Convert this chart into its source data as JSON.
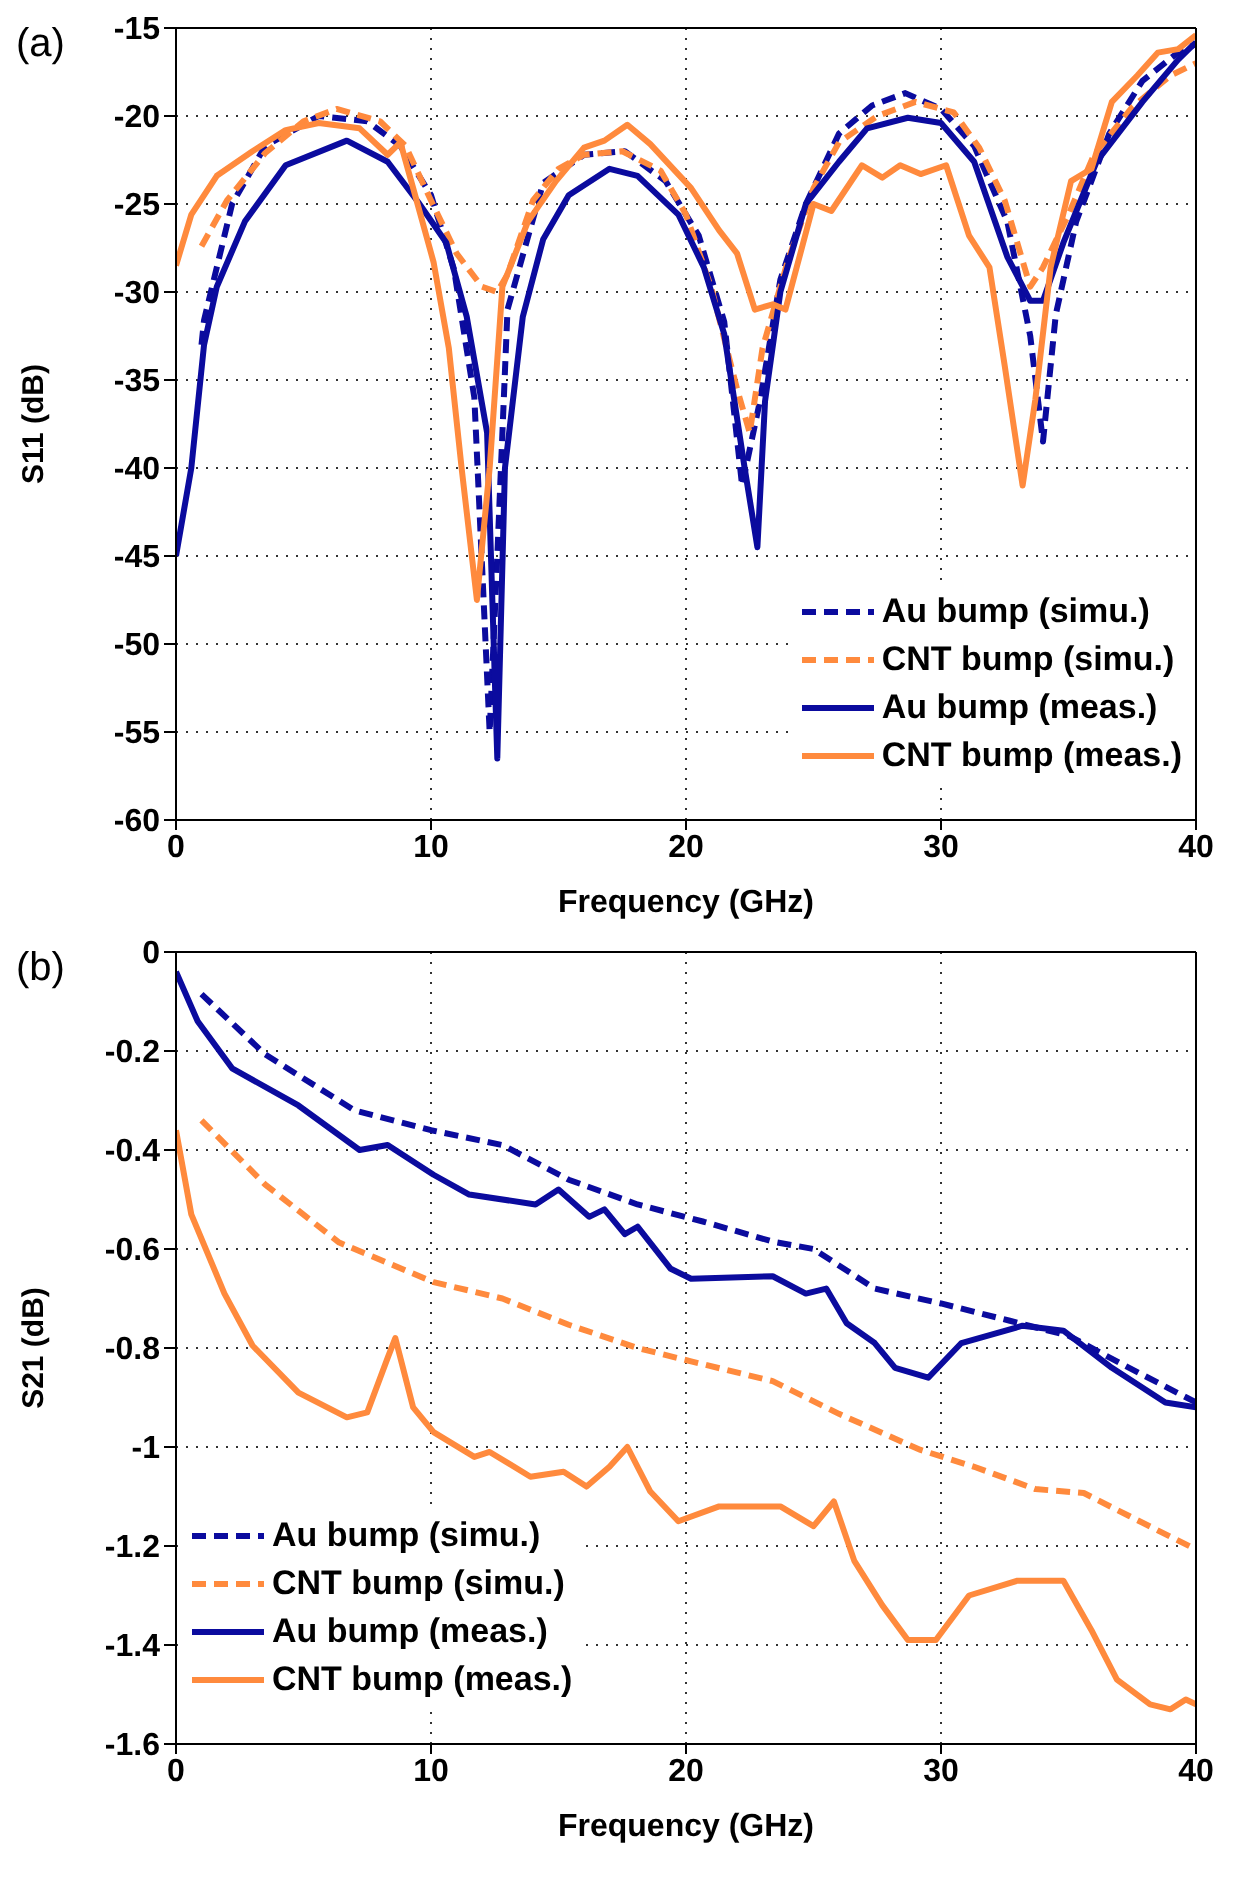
{
  "chart_data": [
    {
      "type": "line",
      "annotations": [
        "(a)"
      ],
      "xlabel": "Frequency (GHz)",
      "ylabel": "S11 (dB)",
      "xlim": [
        0,
        40
      ],
      "xticks": [
        0,
        10,
        20,
        30,
        40
      ],
      "ylim": [
        -60,
        -15
      ],
      "yticks": [
        -60,
        -55,
        -50,
        -45,
        -40,
        -35,
        -30,
        -25,
        -20,
        -15
      ],
      "grid": true,
      "legend": "bottom right",
      "series": [
        {
          "name": "Au bump (simu.)",
          "color": "#0b0b9e",
          "line_style": "dashed",
          "x": [
            1,
            1.1,
            2.2,
            3.5,
            5.6,
            7.5,
            8.8,
            10,
            10.9,
            11.7,
            12.3,
            12.6,
            13,
            14.4,
            16,
            17.6,
            19.2,
            20.5,
            21.5,
            22.2,
            22.9,
            23.7,
            24.7,
            26,
            27.3,
            28.6,
            30,
            31.3,
            32.6,
            33.5,
            34,
            34.5,
            35.3,
            36.6,
            37.9,
            39.2,
            40
          ],
          "values": [
            -33,
            -31.6,
            -25,
            -21.7,
            -20,
            -20.3,
            -21.7,
            -24.5,
            -28.7,
            -36,
            -55,
            -45,
            -31,
            -23.8,
            -22.2,
            -22,
            -23.7,
            -26.8,
            -31.7,
            -41,
            -36.2,
            -29.3,
            -25,
            -21,
            -19.4,
            -18.7,
            -19.6,
            -21.7,
            -26,
            -32.5,
            -38.5,
            -31.3,
            -26,
            -21,
            -18,
            -16.5,
            -15.9
          ]
        },
        {
          "name": "CNT bump (simu.)",
          "color": "#ff8a3d",
          "line_style": "dashed",
          "x": [
            1,
            2,
            3.5,
            5,
            6.3,
            8,
            9,
            10,
            11,
            12,
            12.6,
            13,
            14,
            15,
            16,
            17.5,
            19,
            20,
            21,
            22,
            22.5,
            23,
            24,
            25,
            26,
            27.5,
            29,
            30.5,
            31.5,
            32.5,
            33.5,
            34,
            35,
            36,
            37.5,
            39,
            40
          ],
          "values": [
            -27.4,
            -24.8,
            -22.1,
            -20.3,
            -19.6,
            -20.3,
            -21.7,
            -24.8,
            -27.8,
            -29.7,
            -30,
            -29,
            -24.8,
            -23,
            -22.2,
            -22,
            -23.1,
            -25.6,
            -29.8,
            -35.5,
            -38,
            -33.2,
            -28.2,
            -24.1,
            -21.5,
            -20,
            -19.2,
            -19.8,
            -21.8,
            -24.8,
            -29.7,
            -28.6,
            -25.6,
            -22.2,
            -19.5,
            -17.7,
            -17
          ]
        },
        {
          "name": "Au bump (meas.)",
          "color": "#0b0b9e",
          "line_style": "solid",
          "x": [
            0,
            0.6,
            1.1,
            1.6,
            2.7,
            4.3,
            6.7,
            8.3,
            9.5,
            10.6,
            11.4,
            12.2,
            12.6,
            12.9,
            13.6,
            14.4,
            15.4,
            17,
            18.1,
            19.7,
            20.7,
            21.5,
            22.3,
            22.8,
            23.1,
            23.7,
            24.7,
            26,
            27.1,
            28.7,
            30,
            31.3,
            32.6,
            33.5,
            34,
            34.8,
            36.1,
            37.9,
            39.3,
            40
          ],
          "values": [
            -45,
            -40,
            -33,
            -29.7,
            -26,
            -22.8,
            -21.4,
            -22.6,
            -24.9,
            -27.2,
            -31.4,
            -38,
            -56.5,
            -40,
            -31.4,
            -27,
            -24.5,
            -23,
            -23.4,
            -25.6,
            -28.6,
            -32.4,
            -40,
            -44.5,
            -36.2,
            -30,
            -25,
            -22.6,
            -20.7,
            -20.1,
            -20.4,
            -22.6,
            -28,
            -30.5,
            -30.5,
            -27.2,
            -22.6,
            -19.2,
            -16.8,
            -15.8
          ]
        },
        {
          "name": "CNT bump (meas.)",
          "color": "#ff8a3d",
          "line_style": "solid",
          "x": [
            0,
            0.6,
            1.6,
            3,
            4.3,
            5.6,
            7.2,
            8.3,
            8.8,
            9.3,
            10.1,
            10.7,
            11.2,
            11.8,
            12.3,
            12.8,
            13.8,
            14.9,
            16,
            16.8,
            17.7,
            18.6,
            20.2,
            21.3,
            22,
            22.7,
            23.4,
            23.9,
            25,
            25.7,
            26.9,
            27.7,
            28.4,
            29.2,
            30.2,
            31.1,
            31.9,
            32.5,
            33.2,
            33.7,
            34.3,
            35.1,
            35.9,
            36.7,
            37.7,
            38.5,
            39.3,
            40
          ],
          "values": [
            -28.5,
            -25.6,
            -23.4,
            -22,
            -20.8,
            -20.4,
            -20.7,
            -22.2,
            -21.5,
            -24.1,
            -28.3,
            -33.2,
            -40,
            -47.5,
            -40,
            -29.7,
            -26,
            -23.7,
            -21.8,
            -21.4,
            -20.5,
            -21.6,
            -24.1,
            -26.5,
            -27.8,
            -31,
            -30.7,
            -31,
            -25,
            -25.4,
            -22.8,
            -23.5,
            -22.8,
            -23.3,
            -22.8,
            -26.8,
            -28.6,
            -34.2,
            -41,
            -36.1,
            -28.6,
            -23.7,
            -23,
            -19.2,
            -17.7,
            -16.4,
            -16.2,
            -15.4
          ]
        }
      ]
    },
    {
      "type": "line",
      "annotations": [
        "(b)"
      ],
      "xlabel": "Frequency (GHz)",
      "ylabel": "S21 (dB)",
      "xlim": [
        0,
        40
      ],
      "xticks": [
        0,
        10,
        20,
        30,
        40
      ],
      "ylim": [
        -1.6,
        0
      ],
      "yticks": [
        -1.6,
        -1.4,
        -1.2,
        -1,
        -0.8,
        -0.6,
        -0.4,
        -0.2,
        0
      ],
      "grid": true,
      "legend": "bottom left",
      "series": [
        {
          "name": "Au bump (simu.)",
          "color": "#0b0b9e",
          "line_style": "dashed",
          "x": [
            1,
            3.5,
            7,
            10,
            12.8,
            15.4,
            18.1,
            20.7,
            23.4,
            25,
            27.4,
            30,
            32.7,
            35,
            37,
            40
          ],
          "values": [
            -0.085,
            -0.207,
            -0.32,
            -0.36,
            -0.39,
            -0.46,
            -0.51,
            -0.545,
            -0.585,
            -0.6,
            -0.68,
            -0.71,
            -0.745,
            -0.775,
            -0.83,
            -0.91
          ]
        },
        {
          "name": "CNT bump (simu.)",
          "color": "#ff8a3d",
          "line_style": "dashed",
          "x": [
            1,
            3.5,
            6.4,
            10.1,
            12.8,
            15.4,
            18.1,
            20.2,
            23.4,
            26,
            29.2,
            31.3,
            33.7,
            35.6,
            37.4,
            40
          ],
          "values": [
            -0.34,
            -0.47,
            -0.587,
            -0.667,
            -0.7,
            -0.753,
            -0.8,
            -0.827,
            -0.867,
            -0.933,
            -1.006,
            -1.04,
            -1.085,
            -1.093,
            -1.14,
            -1.207
          ]
        },
        {
          "name": "Au bump (meas.)",
          "color": "#0b0b9e",
          "line_style": "solid",
          "x": [
            0,
            0.85,
            2.2,
            4.8,
            7.2,
            8.3,
            10.1,
            11.5,
            14.1,
            15,
            16.2,
            16.8,
            17.6,
            18.1,
            19.4,
            20.2,
            23.4,
            24.7,
            25.5,
            26.3,
            27.4,
            28.2,
            29.5,
            30.8,
            33.2,
            34.8,
            36.7,
            38.8,
            40
          ],
          "values": [
            -0.04,
            -0.14,
            -0.235,
            -0.31,
            -0.4,
            -0.39,
            -0.45,
            -0.49,
            -0.51,
            -0.48,
            -0.535,
            -0.52,
            -0.57,
            -0.555,
            -0.64,
            -0.66,
            -0.655,
            -0.69,
            -0.68,
            -0.75,
            -0.79,
            -0.84,
            -0.86,
            -0.79,
            -0.755,
            -0.765,
            -0.84,
            -0.91,
            -0.92
          ]
        },
        {
          "name": "CNT bump (meas.)",
          "color": "#ff8a3d",
          "line_style": "solid",
          "x": [
            0,
            0.6,
            1.9,
            3,
            4.8,
            6.7,
            7.5,
            8.3,
            8.6,
            9.3,
            10.1,
            11.7,
            12.3,
            13.9,
            15.2,
            16.1,
            17,
            17.7,
            18.6,
            19.7,
            21.3,
            23.7,
            25,
            25.8,
            26.6,
            27.7,
            28.7,
            29.8,
            31.1,
            33,
            34.8,
            35.9,
            36.9,
            38.2,
            39,
            39.6,
            40
          ],
          "values": [
            -0.36,
            -0.53,
            -0.69,
            -0.795,
            -0.89,
            -0.94,
            -0.93,
            -0.82,
            -0.78,
            -0.92,
            -0.97,
            -1.02,
            -1.01,
            -1.06,
            -1.05,
            -1.08,
            -1.04,
            -1,
            -1.09,
            -1.15,
            -1.12,
            -1.12,
            -1.16,
            -1.11,
            -1.23,
            -1.32,
            -1.39,
            -1.39,
            -1.3,
            -1.27,
            -1.27,
            -1.37,
            -1.47,
            -1.52,
            -1.53,
            -1.51,
            -1.52
          ]
        }
      ]
    }
  ]
}
